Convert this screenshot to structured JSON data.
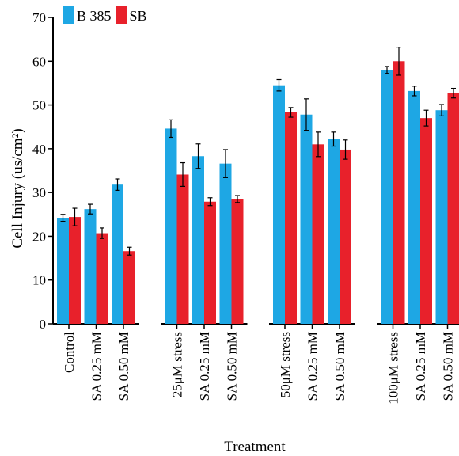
{
  "chart_data": {
    "type": "bar",
    "xlabel": "Treatment",
    "ylabel": "Cell Injury (us/cm²)",
    "ylim": [
      0,
      70
    ],
    "yticks": [
      0,
      10,
      20,
      30,
      40,
      50,
      60,
      70
    ],
    "grid": false,
    "legend_position": "top-left",
    "categories": [
      "Control",
      "SA 0.25 mM",
      "SA 0.50 mM",
      "25μM stress",
      "SA 0.25 mM",
      "SA 0.50 mM",
      "50μM stress",
      "SA 0.25 mM",
      "SA 0.50 mM",
      "100μM stress",
      "SA 0.25 mM",
      "SA 0.50 mM"
    ],
    "groups": [
      [
        0,
        1,
        2
      ],
      [
        3,
        4,
        5
      ],
      [
        6,
        7,
        8
      ],
      [
        9,
        10,
        11
      ]
    ],
    "series": [
      {
        "name": "B 385",
        "color": "#1ea7e4",
        "values": [
          24.2,
          26.2,
          31.8,
          44.6,
          38.3,
          36.6,
          54.5,
          47.8,
          42.2,
          58.0,
          53.2,
          48.8
        ],
        "errors": [
          0.8,
          1.1,
          1.3,
          2.0,
          2.8,
          3.2,
          1.3,
          3.6,
          1.6,
          0.8,
          1.1,
          1.3
        ]
      },
      {
        "name": "SB",
        "color": "#e8212b",
        "values": [
          24.4,
          20.7,
          16.6,
          34.1,
          27.9,
          28.5,
          48.3,
          41.0,
          39.8,
          60.0,
          47.0,
          52.7
        ],
        "errors": [
          2.0,
          1.2,
          0.9,
          2.7,
          0.9,
          0.8,
          1.1,
          2.8,
          2.2,
          3.2,
          1.8,
          1.1
        ]
      }
    ]
  }
}
